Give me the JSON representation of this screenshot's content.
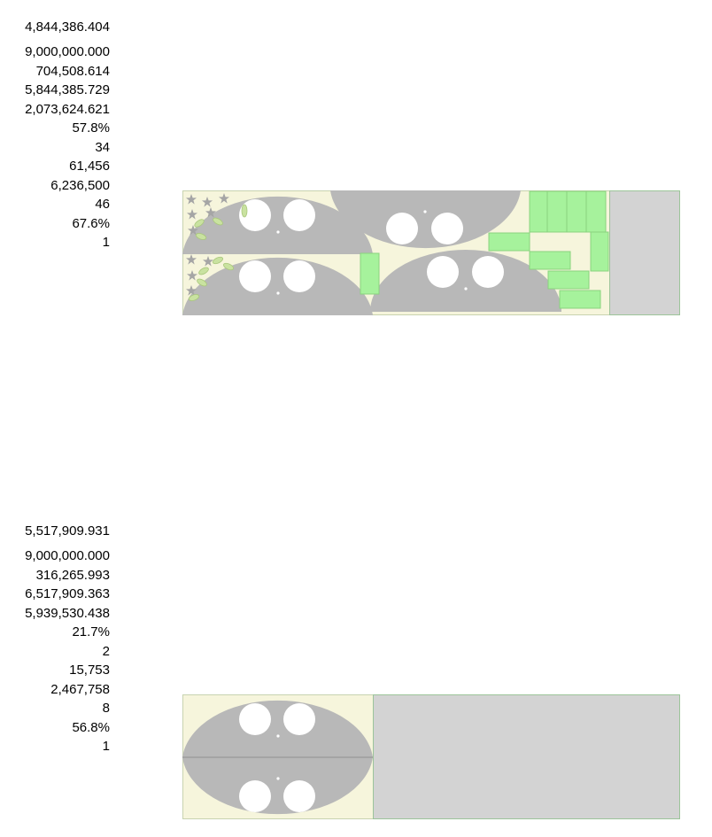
{
  "layouts": [
    {
      "stats": [
        "4,844,386.404",
        "9,000,000.000",
        "704,508.614",
        "5,844,385.729",
        "2,073,624.621",
        "57.8%",
        "34",
        "61,456",
        "6,236,500",
        "46",
        "67.6%",
        "1"
      ]
    },
    {
      "stats": [
        "5,517,909.931",
        "9,000,000.000",
        "316,265.993",
        "6,517,909.363",
        "5,939,530.438",
        "21.7%",
        "2",
        "15,753",
        "2,467,758",
        "8",
        "56.8%",
        "1"
      ]
    }
  ],
  "colors": {
    "sheet_bg": "#f6f5dc",
    "part_fill": "#b8b8b8",
    "hole_fill": "#ffffff",
    "small_part_fill": "#a6f29c",
    "small_part_stroke": "#8ad27e",
    "scrap_fill": "#d3d3d3",
    "scrap_stroke": "#9cc49a",
    "star_fill": "#a5a5a5",
    "leaf_fill": "#c9e2a0"
  }
}
